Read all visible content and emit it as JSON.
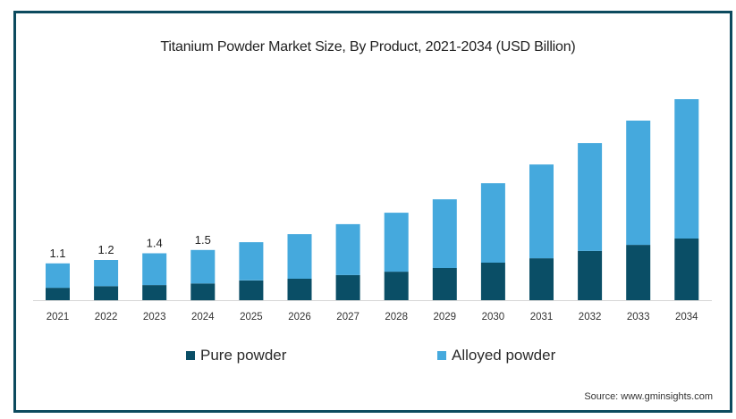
{
  "chart_data": {
    "type": "bar",
    "stacked": true,
    "title": "Titanium Powder Market Size, By Product, 2021-2034 (USD Billion)",
    "xlabel": "",
    "ylabel": "",
    "categories": [
      "2021",
      "2022",
      "2023",
      "2024",
      "2025",
      "2026",
      "2027",
      "2028",
      "2029",
      "2030",
      "2031",
      "2032",
      "2033",
      "2034"
    ],
    "series": [
      {
        "name": "Pure powder",
        "color": "#0a4e66",
        "values": [
          0.37,
          0.42,
          0.45,
          0.5,
          0.59,
          0.64,
          0.75,
          0.85,
          0.96,
          1.12,
          1.25,
          1.47,
          1.65,
          1.84
        ]
      },
      {
        "name": "Alloyed powder",
        "color": "#45a9dd",
        "values": [
          0.73,
          0.78,
          0.95,
          1.0,
          1.14,
          1.33,
          1.52,
          1.76,
          2.05,
          2.37,
          2.8,
          3.22,
          3.71,
          4.16
        ]
      }
    ],
    "totals": [
      1.1,
      1.2,
      1.4,
      1.5,
      1.73,
      1.97,
      2.27,
      2.61,
      3.01,
      3.49,
      4.05,
      4.69,
      5.36,
      6.0
    ],
    "data_labels": [
      {
        "category": "2021",
        "text": "1.1"
      },
      {
        "category": "2022",
        "text": "1.2"
      },
      {
        "category": "2023",
        "text": "1.4"
      },
      {
        "category": "2024",
        "text": "1.5"
      }
    ],
    "ylim": [
      0,
      6.5
    ],
    "grid": false,
    "legend_position": "bottom"
  },
  "legend": {
    "items": [
      {
        "label": "Pure powder",
        "color": "#0a4e66"
      },
      {
        "label": "Alloyed powder",
        "color": "#45a9dd"
      }
    ]
  },
  "source": "Source: www.gminsights.com"
}
